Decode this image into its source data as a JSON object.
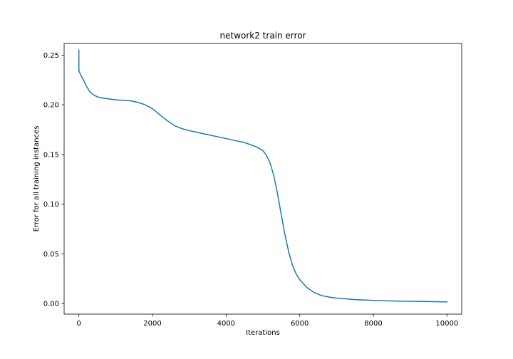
{
  "chart_data": {
    "type": "line",
    "title": "network2 train error",
    "xlabel": "Iterations",
    "ylabel": "Error for all training instances",
    "xlim": [
      -400,
      10400
    ],
    "ylim": [
      -0.0106,
      0.2617
    ],
    "xticks": [
      0,
      2000,
      4000,
      6000,
      8000,
      10000
    ],
    "xtick_labels": [
      "0",
      "2000",
      "4000",
      "6000",
      "8000",
      "10000"
    ],
    "yticks": [
      0.0,
      0.05,
      0.1,
      0.15,
      0.2,
      0.25
    ],
    "ytick_labels": [
      "0.00",
      "0.05",
      "0.10",
      "0.15",
      "0.20",
      "0.25"
    ],
    "grid": false,
    "series": [
      {
        "color": "#1f77b4",
        "x": [
          0,
          1,
          2,
          50,
          100,
          150,
          200,
          250,
          300,
          400,
          500,
          600,
          800,
          1000,
          1200,
          1400,
          1600,
          1800,
          2000,
          2200,
          2400,
          2600,
          2800,
          3000,
          3500,
          4000,
          4500,
          4800,
          5000,
          5100,
          5200,
          5300,
          5400,
          5500,
          5600,
          5700,
          5800,
          5900,
          6000,
          6200,
          6400,
          6600,
          6800,
          7000,
          7500,
          8000,
          8500,
          9000,
          9500,
          10000
        ],
        "y": [
          0.255,
          0.242,
          0.234,
          0.23,
          0.227,
          0.223,
          0.219,
          0.216,
          0.213,
          0.21,
          0.208,
          0.207,
          0.206,
          0.205,
          0.2045,
          0.204,
          0.2025,
          0.2,
          0.196,
          0.19,
          0.184,
          0.179,
          0.176,
          0.174,
          0.17,
          0.166,
          0.162,
          0.158,
          0.154,
          0.149,
          0.141,
          0.128,
          0.11,
          0.089,
          0.069,
          0.052,
          0.039,
          0.03,
          0.024,
          0.016,
          0.011,
          0.008,
          0.0065,
          0.0055,
          0.004,
          0.0032,
          0.0027,
          0.0023,
          0.002,
          0.0017
        ]
      }
    ]
  }
}
